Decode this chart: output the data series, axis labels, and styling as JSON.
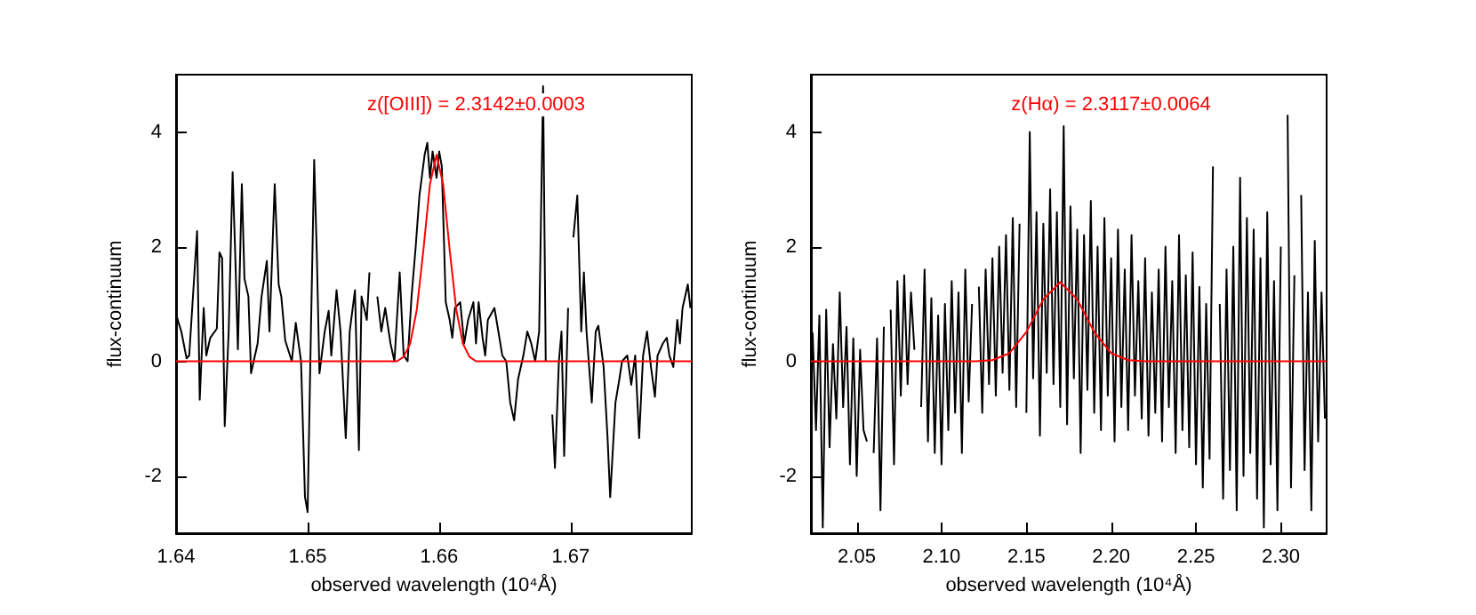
{
  "chart_data": [
    {
      "type": "line",
      "xlabel": "observed wavelength (10⁴Å)",
      "ylabel": "flux-continuum",
      "annotations": [
        "z([OIII]) = 2.3142±0.0003"
      ],
      "xlim": [
        1.64,
        1.6792
      ],
      "xticks": [
        1.64,
        1.65,
        1.66,
        1.67
      ],
      "ylim": [
        -3,
        5
      ],
      "yticks": [
        -2,
        0,
        2,
        4
      ],
      "grid": false,
      "series": [
        {
          "color": "#000000",
          "x": [
            1.64,
            1.6404,
            1.6408,
            1.641,
            1.6414,
            1.6416,
            1.6418,
            1.6421,
            1.6423,
            1.6426,
            1.6431,
            1.6433,
            1.6435,
            1.6437,
            1.644,
            1.6443,
            1.6445,
            1.6447,
            1.645,
            1.6452,
            1.6455,
            1.6457,
            1.6462,
            1.6465,
            1.6469,
            1.6471,
            1.6475,
            1.6478,
            1.648,
            1.6483,
            1.6488,
            1.6491,
            1.6495,
            1.6498,
            1.65,
            1.6502,
            1.6505,
            1.6507,
            1.6509,
            1.6513,
            1.6516,
            1.6518,
            1.6522,
            1.6525,
            1.6529,
            1.6532,
            1.6536,
            1.6539,
            1.6541,
            1.6545,
            1.6547,
            1.6551,
            1.6553,
            1.6556,
            1.6559,
            1.6563,
            1.6566,
            1.657,
            1.6573,
            1.6576,
            1.6579,
            1.6582,
            1.6585,
            1.6589,
            1.6591,
            1.6593,
            1.6595,
            1.6598,
            1.66,
            1.6602,
            1.6605,
            1.6608,
            1.661,
            1.6612,
            1.6616,
            1.6619,
            1.6622,
            1.6626,
            1.6628,
            1.663,
            1.6633,
            1.6635,
            1.6637,
            1.6642,
            1.6645,
            1.6648,
            1.6651,
            1.6654,
            1.6657,
            1.666,
            1.6664,
            1.6667,
            1.667,
            1.6673,
            1.6676,
            1.6679,
            1.6681,
            1.6683,
            1.6686,
            1.6688,
            1.6691,
            1.6693,
            1.6695,
            1.6698,
            1.67,
            1.6702,
            1.6705,
            1.6708,
            1.671,
            1.6712,
            1.6716,
            1.6719,
            1.6721,
            1.6725,
            1.6728,
            1.673,
            1.6734,
            1.6737,
            1.6739,
            1.6743,
            1.6746,
            1.6749,
            1.6752,
            1.6755,
            1.6758,
            1.6761,
            1.6764,
            1.6766,
            1.677,
            1.6773,
            1.6775,
            1.6778,
            1.6781,
            1.6783,
            1.6785,
            1.6789,
            1.6791
          ],
          "values": [
            0.82,
            0.52,
            0.05,
            0.1,
            1.55,
            2.27,
            -0.67,
            0.93,
            0.1,
            0.41,
            0.57,
            1.9,
            1.8,
            -1.13,
            0.52,
            3.3,
            1.85,
            0.21,
            3.09,
            1.44,
            1.13,
            -0.21,
            0.31,
            1.13,
            1.75,
            0.52,
            3.09,
            1.34,
            1.13,
            0.36,
            0.0,
            0.67,
            0.0,
            -2.37,
            -2.63,
            -0.1,
            3.51,
            1.86,
            -0.21,
            0.52,
            0.88,
            0.1,
            1.24,
            0.52,
            -1.34,
            0.52,
            1.24,
            -1.55,
            1.13,
            0.72,
            1.55,
            null,
            1.13,
            0.52,
            0.93,
            0.31,
            0.0,
            1.55,
            0.1,
            0.0,
            1.13,
            1.95,
            2.89,
            3.61,
            3.81,
            3.2,
            3.66,
            3.2,
            3.66,
            3.4,
            1.03,
            0.72,
            0.41,
            0.93,
            1.03,
            0.31,
            0.72,
            1.03,
            0.31,
            1.03,
            0.41,
            0.1,
            0.72,
            0.93,
            0.52,
            0.1,
            0.0,
            -0.72,
            -1.03,
            -0.31,
            0.1,
            0.52,
            0.31,
            0.0,
            0.52,
            4.8,
            0.0,
            null,
            -0.93,
            -1.86,
            0.0,
            0.52,
            -1.65,
            0.93,
            null,
            2.16,
            2.89,
            0.52,
            1.55,
            0.52,
            -0.72,
            0.52,
            0.62,
            -0.1,
            -1.34,
            -2.37,
            -0.72,
            -0.31,
            0.0,
            0.1,
            -0.41,
            0.1,
            -1.34,
            0.1,
            0.52,
            -0.1,
            -0.62,
            0.1,
            0.31,
            0.41,
            0.1,
            -0.1,
            0.72,
            0.31,
            0.93,
            1.34,
            0.93
          ]
        },
        {
          "color": "#ff0000",
          "x": [
            1.64,
            1.6568,
            1.6573,
            1.6578,
            1.6583,
            1.6588,
            1.6593,
            1.6598,
            1.6603,
            1.6608,
            1.6613,
            1.6618,
            1.6623,
            1.6628,
            1.6792
          ],
          "values": [
            0,
            0,
            0.08,
            0.31,
            0.9,
            1.94,
            3.09,
            3.6,
            3.09,
            1.94,
            0.9,
            0.31,
            0.08,
            0,
            0
          ]
        }
      ]
    },
    {
      "type": "line",
      "xlabel": "observed wavelength (10⁴Å)",
      "ylabel": "flux-continuum",
      "annotations": [
        "z(Hα) = 2.3117±0.0064"
      ],
      "xlim": [
        2.023,
        2.327
      ],
      "xticks": [
        {
          "value": 2.05,
          "label": "2.05"
        },
        {
          "value": 2.1,
          "label": "2.10"
        },
        {
          "value": 2.15,
          "label": "2.15"
        },
        {
          "value": 2.2,
          "label": "2.20"
        },
        {
          "value": 2.25,
          "label": "2.25"
        },
        {
          "value": 2.3,
          "label": "2.30"
        }
      ],
      "ylim": [
        -3,
        5
      ],
      "yticks": [
        -2,
        0,
        2,
        4
      ],
      "grid": false,
      "series": [
        {
          "color": "#000000",
          "x": [
            2.024,
            2.026,
            2.028,
            2.03,
            2.032,
            2.034,
            2.036,
            2.038,
            2.04,
            2.042,
            2.044,
            2.046,
            2.048,
            2.05,
            2.052,
            2.054,
            2.056,
            2.058,
            2.06,
            2.062,
            2.064,
            2.066,
            2.068,
            2.07,
            2.072,
            2.074,
            2.076,
            2.078,
            2.08,
            2.082,
            2.084,
            2.086,
            2.088,
            2.09,
            2.092,
            2.094,
            2.096,
            2.098,
            2.1,
            2.102,
            2.104,
            2.106,
            2.108,
            2.11,
            2.112,
            2.114,
            2.116,
            2.118,
            2.12,
            2.122,
            2.124,
            2.126,
            2.128,
            2.13,
            2.132,
            2.134,
            2.136,
            2.138,
            2.14,
            2.142,
            2.144,
            2.146,
            2.148,
            2.15,
            2.152,
            2.154,
            2.156,
            2.158,
            2.16,
            2.162,
            2.164,
            2.166,
            2.168,
            2.17,
            2.172,
            2.174,
            2.176,
            2.178,
            2.18,
            2.182,
            2.184,
            2.186,
            2.188,
            2.19,
            2.192,
            2.194,
            2.196,
            2.198,
            2.2,
            2.202,
            2.204,
            2.206,
            2.208,
            2.21,
            2.212,
            2.214,
            2.216,
            2.218,
            2.22,
            2.222,
            2.224,
            2.226,
            2.228,
            2.23,
            2.232,
            2.234,
            2.236,
            2.238,
            2.24,
            2.242,
            2.244,
            2.246,
            2.248,
            2.25,
            2.252,
            2.254,
            2.256,
            2.258,
            2.26,
            2.262,
            2.264,
            2.266,
            2.268,
            2.27,
            2.272,
            2.274,
            2.276,
            2.278,
            2.28,
            2.282,
            2.284,
            2.286,
            2.288,
            2.29,
            2.292,
            2.294,
            2.296,
            2.298,
            2.3,
            2.302,
            2.304,
            2.306,
            2.308,
            2.31,
            2.312,
            2.314,
            2.316,
            2.318,
            2.32,
            2.322,
            2.324,
            2.326
          ],
          "values": [
            0.5,
            -1.2,
            0.8,
            -2.9,
            0.9,
            -1.5,
            0.3,
            -1.0,
            1.2,
            -0.8,
            0.6,
            -1.8,
            0.4,
            -2.0,
            0.2,
            -1.2,
            -1.4,
            null,
            -1.6,
            0.4,
            -2.6,
            0.6,
            null,
            0.9,
            -1.8,
            1.4,
            -0.6,
            1.5,
            -0.4,
            1.2,
            0.2,
            null,
            -0.8,
            1.6,
            -1.4,
            1.1,
            -1.6,
            0.8,
            -1.8,
            1.0,
            -1.2,
            1.4,
            -0.9,
            1.2,
            -1.6,
            1.6,
            -0.7,
            1.0,
            null,
            1.3,
            -0.9,
            1.6,
            -0.4,
            1.8,
            -0.6,
            2.0,
            -0.2,
            2.2,
            -0.5,
            2.5,
            -0.8,
            2.4,
            null,
            -0.9,
            4.0,
            -0.3,
            2.6,
            -1.3,
            2.4,
            -0.2,
            3.0,
            -0.4,
            2.6,
            -0.8,
            4.1,
            -1.1,
            2.7,
            -0.3,
            2.3,
            -1.6,
            2.2,
            -0.5,
            2.8,
            -0.9,
            2.0,
            -1.2,
            2.5,
            -0.6,
            1.8,
            -1.4,
            2.3,
            -0.8,
            1.6,
            -1.2,
            2.2,
            -0.6,
            1.4,
            -1.0,
            1.8,
            -1.3,
            1.2,
            -0.9,
            1.6,
            -1.4,
            2.0,
            -0.8,
            1.4,
            -1.6,
            2.2,
            -1.2,
            1.5,
            -1.5,
            1.9,
            -1.8,
            1.3,
            -2.2,
            1.0,
            -1.7,
            3.4,
            null,
            1.0,
            -2.4,
            1.6,
            -1.9,
            2.0,
            -2.6,
            3.2,
            -2.0,
            2.5,
            -1.6,
            2.3,
            -2.4,
            1.8,
            -2.9,
            2.6,
            -1.8,
            1.4,
            -2.6,
            2.0,
            null,
            4.3,
            -2.2,
            1.5,
            null,
            2.9,
            -1.9,
            1.2,
            -2.6,
            2.1,
            -1.4,
            1.2,
            -1.0
          ]
        },
        {
          "color": "#ff0000",
          "x": [
            2.023,
            2.12,
            2.13,
            2.14,
            2.15,
            2.16,
            2.17,
            2.18,
            2.19,
            2.2,
            2.21,
            2.22,
            2.327
          ],
          "values": [
            0,
            0,
            0.02,
            0.14,
            0.51,
            1.08,
            1.38,
            1.08,
            0.51,
            0.14,
            0.02,
            0,
            0
          ]
        }
      ]
    }
  ]
}
